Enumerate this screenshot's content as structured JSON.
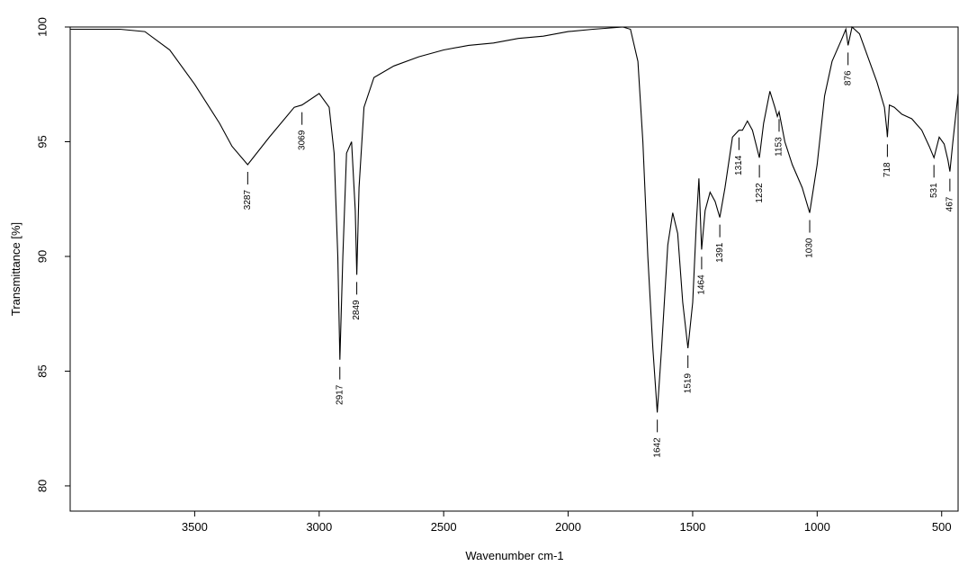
{
  "chart_data": {
    "type": "line",
    "x_label": "Wavenumber cm-1",
    "y_label": "Transmittance [%]",
    "xlim": [
      4000,
      434
    ],
    "ylim": [
      78.9,
      100
    ],
    "xticks": [
      3500,
      3000,
      2500,
      2000,
      1500,
      1000,
      500
    ],
    "yticks": [
      80,
      85,
      90,
      95,
      100
    ],
    "color": "#000000",
    "x": [
      4000,
      3800,
      3700,
      3600,
      3500,
      3400,
      3350,
      3287,
      3200,
      3100,
      3069,
      3000,
      2960,
      2940,
      2925,
      2917,
      2905,
      2890,
      2870,
      2855,
      2849,
      2840,
      2820,
      2780,
      2700,
      2600,
      2500,
      2400,
      2300,
      2200,
      2100,
      2000,
      1900,
      1780,
      1750,
      1720,
      1700,
      1680,
      1660,
      1642,
      1625,
      1600,
      1580,
      1560,
      1540,
      1519,
      1500,
      1485,
      1475,
      1464,
      1450,
      1430,
      1410,
      1391,
      1370,
      1340,
      1314,
      1300,
      1280,
      1260,
      1232,
      1215,
      1190,
      1170,
      1160,
      1153,
      1130,
      1100,
      1060,
      1030,
      1000,
      970,
      940,
      900,
      885,
      876,
      860,
      830,
      800,
      760,
      730,
      720,
      718,
      710,
      690,
      660,
      620,
      580,
      550,
      531,
      510,
      490,
      475,
      467,
      455,
      434
    ],
    "values": [
      99.9,
      99.9,
      99.8,
      99.0,
      97.5,
      95.8,
      94.8,
      94.0,
      95.2,
      96.5,
      96.6,
      97.1,
      96.5,
      94.5,
      90,
      85.5,
      90,
      94.5,
      95.0,
      92,
      89.2,
      93,
      96.5,
      97.8,
      98.3,
      98.7,
      99.0,
      99.2,
      99.3,
      99.5,
      99.6,
      99.8,
      99.9,
      100,
      99.9,
      98.5,
      95,
      90,
      86,
      83.2,
      86,
      90.5,
      91.9,
      91,
      88,
      86,
      88,
      91.5,
      93.4,
      90.3,
      92,
      92.8,
      92.4,
      91.7,
      93,
      95.2,
      95.5,
      95.5,
      95.9,
      95.5,
      94.3,
      95.8,
      97.2,
      96.5,
      96.1,
      96.3,
      95,
      94,
      93,
      91.9,
      94,
      97,
      98.5,
      99.5,
      99.9,
      99.2,
      100,
      99.7,
      98.8,
      97.6,
      96.5,
      95.5,
      95.2,
      96.6,
      96.5,
      96.2,
      96.0,
      95.5,
      94.8,
      94.3,
      95.2,
      94.9,
      94.2,
      93.7,
      95.0,
      97.1
    ],
    "peaks": [
      3287,
      3069,
      2917,
      2849,
      1642,
      1519,
      1464,
      1391,
      1314,
      1232,
      1153,
      1030,
      876,
      718,
      531,
      467
    ]
  }
}
